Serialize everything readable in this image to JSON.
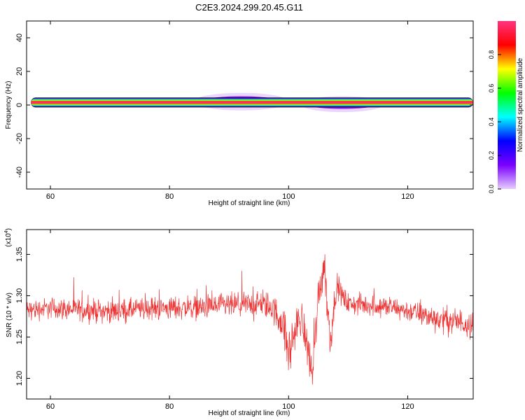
{
  "title": "C2E3.2024.299.20.45.G11",
  "chart_data": [
    {
      "type": "heatmap",
      "xlabel": "Height of straight line (km)",
      "ylabel": "Frequency (Hz)",
      "xlim": [
        56,
        131
      ],
      "ylim": [
        -50,
        50
      ],
      "xticks": [
        "60",
        "80",
        "100",
        "120"
      ],
      "yticks": [
        "40",
        "20",
        "0",
        "-20",
        "-40"
      ],
      "colorbar": {
        "label": "Normalized spectral amplitude",
        "ticks": [
          "0.0",
          "0.2",
          "0.4",
          "0.6",
          "0.8"
        ],
        "range": [
          0,
          1
        ],
        "colormap": [
          "#e6ccff",
          "#7a00ff",
          "#0000ff",
          "#00ffff",
          "#00ff00",
          "#ffff00",
          "#ff0000",
          "#ff3380"
        ]
      },
      "dominant_band": {
        "frequency": 1.5,
        "normalized_amplitude": 1.0
      },
      "spread_regions": [
        {
          "x_range": [
            84,
            100
          ],
          "frequency_range": [
            -2,
            6
          ]
        },
        {
          "x_range": [
            102,
            116
          ],
          "frequency_range": [
            -3,
            4
          ]
        }
      ]
    },
    {
      "type": "line",
      "xlabel": "Height of straight line (km)",
      "ylabel": "SNR (10 * v/v)",
      "y_multiplier": "(x10",
      "y_multiplier_exp": "4",
      "xlim": [
        56,
        131
      ],
      "ylim": [
        1.175,
        1.38
      ],
      "xticks": [
        "60",
        "80",
        "100",
        "120"
      ],
      "yticks": [
        "1.35",
        "1.30",
        "1.25",
        "1.20"
      ],
      "color": "#ee3333",
      "series": [
        {
          "x": [
            56,
            60,
            65,
            70,
            75,
            80,
            85,
            90,
            95,
            97,
            99,
            100,
            101,
            102,
            103,
            104,
            105,
            106,
            107,
            108,
            109,
            110,
            115,
            120,
            125,
            131
          ],
          "mean": [
            1.282,
            1.285,
            1.283,
            1.281,
            1.284,
            1.285,
            1.286,
            1.288,
            1.29,
            1.287,
            1.268,
            1.23,
            1.255,
            1.275,
            1.245,
            1.205,
            1.3,
            1.34,
            1.245,
            1.312,
            1.3,
            1.29,
            1.288,
            1.282,
            1.272,
            1.266
          ],
          "noise_amplitude": [
            0.012,
            0.012,
            0.012,
            0.013,
            0.012,
            0.013,
            0.013,
            0.014,
            0.014,
            0.016,
            0.02,
            0.028,
            0.025,
            0.02,
            0.024,
            0.025,
            0.022,
            0.025,
            0.02,
            0.014,
            0.012,
            0.012,
            0.012,
            0.012,
            0.014,
            0.016
          ]
        }
      ]
    }
  ]
}
